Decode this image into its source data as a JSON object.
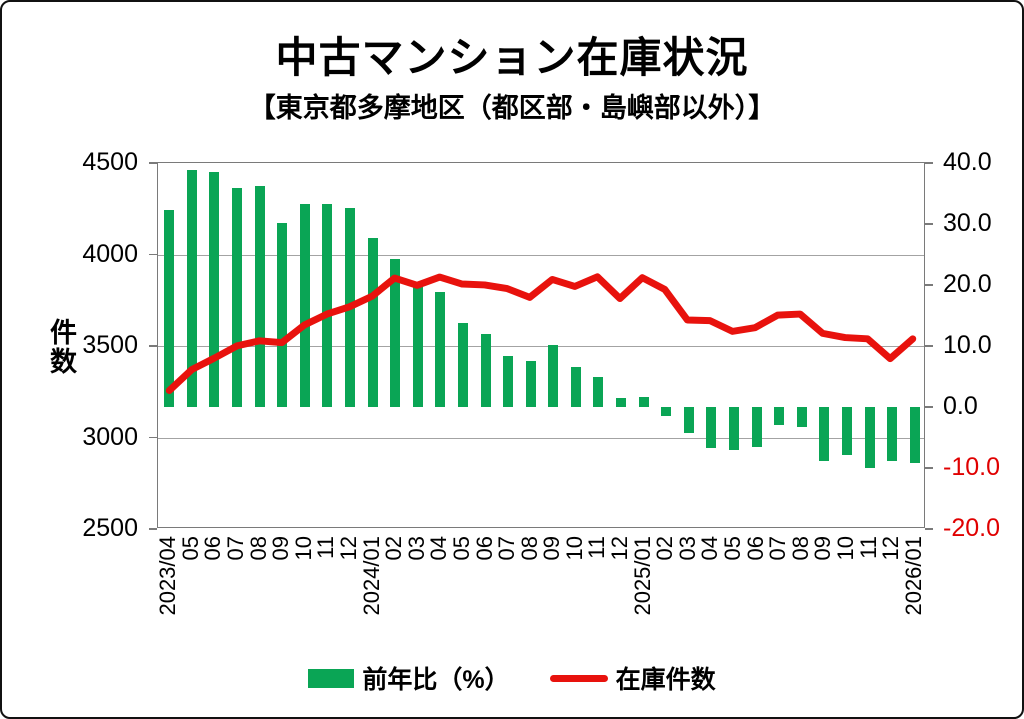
{
  "header": {
    "title": "中古マンション在庫状況",
    "subtitle": "【東京都多摩地区（都区部・島嶼部以外）】"
  },
  "chart_data": {
    "type": "combo_bar_line",
    "title": "中古マンション在庫状況",
    "subtitle": "【東京都多摩地区（都区部・島嶼部以外）】",
    "categories": [
      "2023/04",
      "05",
      "06",
      "07",
      "08",
      "09",
      "10",
      "11",
      "12",
      "2024/01",
      "02",
      "03",
      "04",
      "05",
      "06",
      "07",
      "08",
      "09",
      "10",
      "11",
      "12",
      "2025/01",
      "02",
      "03",
      "04",
      "05",
      "06",
      "07",
      "08",
      "09",
      "10",
      "11",
      "12",
      "2026/01"
    ],
    "series": [
      {
        "name": "前年比（%）",
        "type": "bar",
        "axis": "right",
        "color": "#0aa555",
        "values": [
          32.3,
          38.8,
          38.6,
          35.9,
          36.2,
          30.2,
          33.3,
          33.2,
          32.6,
          27.7,
          24.3,
          20.5,
          18.9,
          13.7,
          11.9,
          8.4,
          7.5,
          10.2,
          6.6,
          4.9,
          1.5,
          1.6,
          -1.4,
          -4.3,
          -6.8,
          -7.1,
          -6.6,
          -2.9,
          -3.3,
          -8.8,
          -7.9,
          -10.0,
          -8.8,
          -9.1
        ]
      },
      {
        "name": "在庫件数",
        "type": "line",
        "axis": "left",
        "color": "#e8120d",
        "values": [
          3250,
          3365,
          3428,
          3495,
          3523,
          3513,
          3610,
          3670,
          3710,
          3768,
          3868,
          3828,
          3873,
          3835,
          3830,
          3810,
          3762,
          3860,
          3822,
          3875,
          3755,
          3870,
          3805,
          3637,
          3634,
          3575,
          3595,
          3664,
          3670,
          3564,
          3541,
          3534,
          3425,
          3534
        ]
      }
    ],
    "left_axis": {
      "label": "件数",
      "min": 2500,
      "max": 4500,
      "ticks": [
        "4500",
        "4000",
        "3500",
        "3000",
        "2500"
      ]
    },
    "right_axis": {
      "min": -20,
      "max": 40,
      "ticks": [
        "40.0",
        "30.0",
        "20.0",
        "10.0",
        "0.0",
        "-10.0",
        "-20.0"
      ],
      "negative_tick_color": "#e00000"
    },
    "grid": true,
    "legend_position": "bottom"
  }
}
